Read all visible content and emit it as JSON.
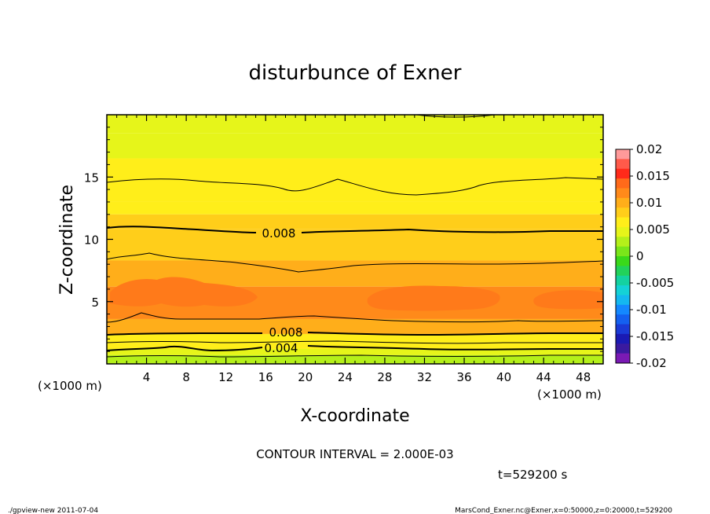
{
  "chart_data": {
    "type": "heatmap",
    "title": "disturbunce of Exner",
    "xlabel": "X-coordinate",
    "ylabel": "Z-coordinate",
    "x_unit": "(×1000 m)",
    "x_unit_right": "(×1000 m)",
    "y_unit": "(×1000 m)",
    "xlim": [
      0,
      50
    ],
    "ylim": [
      0,
      20
    ],
    "x_ticks": [
      4,
      8,
      12,
      16,
      20,
      24,
      28,
      32,
      36,
      40,
      44,
      48
    ],
    "y_ticks": [
      5,
      10,
      15
    ],
    "contour_interval_text": "CONTOUR INTERVAL = 2.000E-03",
    "time_text": "t=529200 s",
    "colorbar": {
      "min": -0.02,
      "max": 0.02,
      "tick_labels": [
        "0.02",
        "0.015",
        "0.01",
        "0.005",
        "0",
        "-0.005",
        "-0.01",
        "-0.015",
        "-0.02"
      ],
      "tick_values": [
        0.02,
        0.015,
        0.01,
        0.005,
        0,
        -0.005,
        -0.01,
        -0.015,
        -0.02
      ],
      "colors": [
        "#ff9a9a",
        "#ff5a4a",
        "#ff2a1a",
        "#ff6a1a",
        "#ff8a1a",
        "#ffae1a",
        "#ffce1a",
        "#ffee1a",
        "#e6f51a",
        "#b4f01a",
        "#7ae61a",
        "#3ad91a",
        "#22d25a",
        "#14d2a0",
        "#14d2d6",
        "#14b8f0",
        "#1488ff",
        "#1460f0",
        "#1a3ad6",
        "#1a1ab4",
        "#3a1aa0",
        "#7a1ab4"
      ]
    },
    "contour_labels": [
      {
        "text": "0.008",
        "x": 19,
        "z": 10.5
      },
      {
        "text": "0.008",
        "x": 19.5,
        "z": 2.5
      },
      {
        "text": "0.004",
        "x": 19,
        "z": 1.2
      }
    ],
    "field_bands": [
      {
        "z_top": 20,
        "value": 0.0045
      },
      {
        "z_top": 18.5,
        "value": 0.0052
      },
      {
        "z_top": 16.5,
        "value": 0.0058
      },
      {
        "z_top": 14.7,
        "value": 0.0066
      },
      {
        "z_top": 13,
        "value": 0.0072
      },
      {
        "z_top": 12,
        "value": 0.0078
      },
      {
        "z_top": 10.8,
        "value": 0.0084
      },
      {
        "z_top": 8.3,
        "value": 0.0096
      },
      {
        "z_top": 6.2,
        "value": 0.011
      },
      {
        "z_top": 3.6,
        "value": 0.0092
      },
      {
        "z_top": 2.4,
        "value": 0.0072
      },
      {
        "z_top": 1.7,
        "value": 0.0058
      },
      {
        "z_top": 1.2,
        "value": 0.0048
      },
      {
        "z_top": 0.7,
        "value": 0.0035
      }
    ]
  },
  "footer": {
    "left": "./gpview-new  2011-07-04",
    "right": "MarsCond_Exner.nc@Exner,x=0:50000,z=0:20000,t=529200"
  }
}
